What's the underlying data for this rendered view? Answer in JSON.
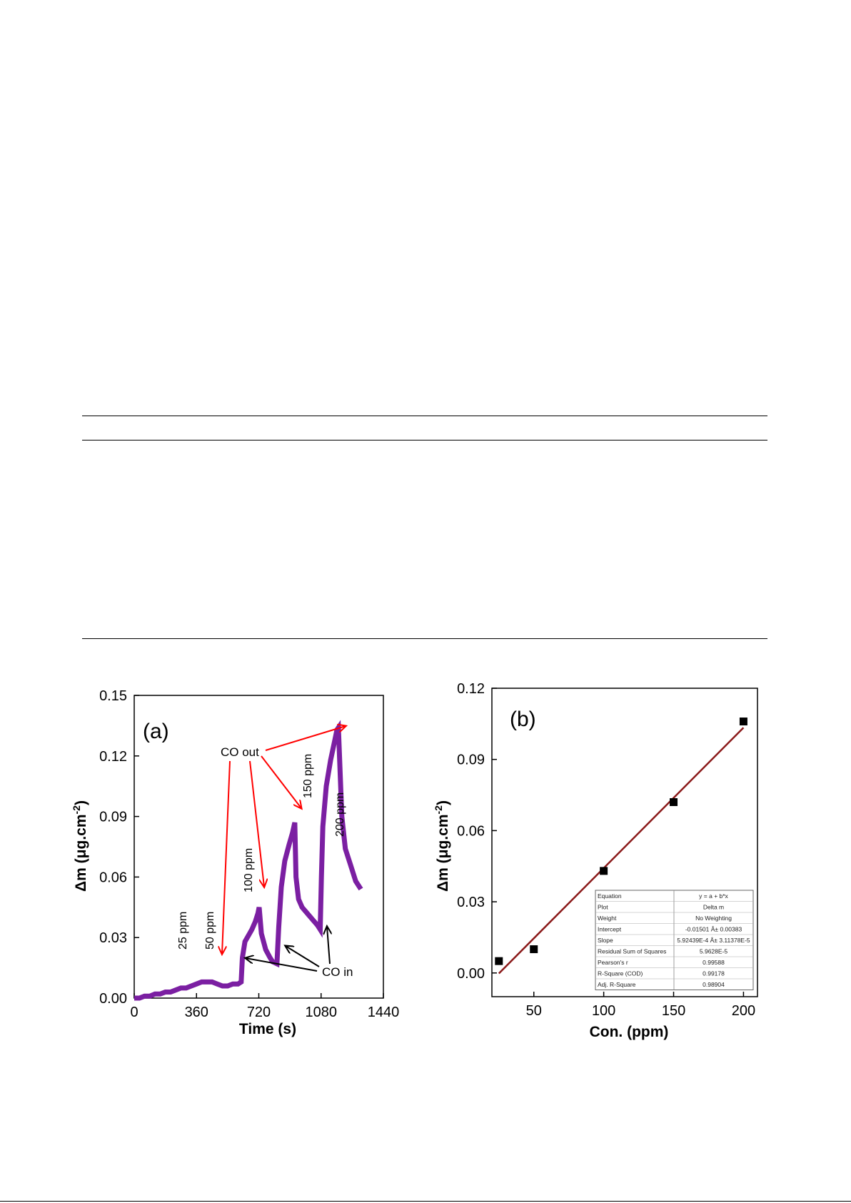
{
  "charts": [
    {
      "id": "a",
      "type": "line",
      "panel_label": "(a)",
      "xlabel": "Time (s)",
      "ylabel_main": "Δm (μg.cm",
      "ylabel_sup": "-2",
      "ylabel_tail": ")",
      "xlim": [
        0,
        1440
      ],
      "ylim": [
        0,
        0.15
      ],
      "xticks": [
        0,
        360,
        720,
        1080,
        1440
      ],
      "yticks": [
        "0.00",
        "0.03",
        "0.06",
        "0.09",
        "0.12",
        "0.15"
      ],
      "line_color": "#7b1fa2",
      "x": [
        0,
        30,
        60,
        90,
        120,
        150,
        180,
        210,
        240,
        270,
        300,
        330,
        360,
        390,
        420,
        450,
        480,
        510,
        540,
        570,
        600,
        618,
        625,
        640,
        660,
        680,
        700,
        715,
        722,
        735,
        760,
        785,
        800,
        825,
        835,
        850,
        870,
        895,
        915,
        928,
        935,
        950,
        970,
        1000,
        1030,
        1060,
        1075,
        1082,
        1090,
        1110,
        1135,
        1160,
        1172,
        1180,
        1200,
        1220,
        1250,
        1280,
        1310
      ],
      "y": [
        0,
        0,
        0.001,
        0.001,
        0.002,
        0.002,
        0.003,
        0.003,
        0.004,
        0.005,
        0.005,
        0.006,
        0.007,
        0.008,
        0.008,
        0.008,
        0.007,
        0.006,
        0.006,
        0.007,
        0.007,
        0.008,
        0.02,
        0.028,
        0.031,
        0.034,
        0.038,
        0.042,
        0.045,
        0.032,
        0.024,
        0.02,
        0.018,
        0.017,
        0.035,
        0.055,
        0.068,
        0.076,
        0.082,
        0.087,
        0.06,
        0.049,
        0.045,
        0.042,
        0.039,
        0.036,
        0.034,
        0.06,
        0.085,
        0.105,
        0.118,
        0.128,
        0.133,
        0.134,
        0.09,
        0.074,
        0.066,
        0.058,
        0.054
      ],
      "annotations": {
        "ppm_25": "25 ppm",
        "ppm_50": "50 ppm",
        "ppm_100": "100 ppm",
        "ppm_150": "150 ppm",
        "ppm_200": "200 ppm",
        "co_out": "CO out",
        "co_in": "CO in"
      },
      "out_arrow_color": "#ff0000",
      "in_arrow_color": "#000000"
    },
    {
      "id": "b",
      "type": "scatter",
      "panel_label": "(b)",
      "xlabel": "Con. (ppm)",
      "ylabel_main": "Δm (μg.cm",
      "ylabel_sup": "-2",
      "ylabel_tail": ")",
      "xlim": [
        20,
        210
      ],
      "ylim": [
        -0.01,
        0.12
      ],
      "xticks": [
        50,
        100,
        150,
        200
      ],
      "yticks": [
        "0.00",
        "0.03",
        "0.06",
        "0.09",
        "0.12"
      ],
      "x": [
        25,
        50,
        100,
        150,
        200
      ],
      "y": [
        0.005,
        0.01,
        0.043,
        0.072,
        0.106
      ],
      "fit": {
        "intercept": -0.01501,
        "slope": 0.000592,
        "color": "#8b1a1a"
      },
      "fit_table": [
        [
          "Equation",
          "y = a + b*x"
        ],
        [
          "Plot",
          "Delta m"
        ],
        [
          "Weight",
          "No Weighting"
        ],
        [
          "Intercept",
          "-0.01501 Â± 0.00383"
        ],
        [
          "Slope",
          "5.92439E-4 Â± 3.11378E-5"
        ],
        [
          "Residual Sum of Squares",
          "5.9628E-5"
        ],
        [
          "Pearson's r",
          "0.99588"
        ],
        [
          "R-Square (COD)",
          "0.99178"
        ],
        [
          "Adj. R-Square",
          "0.98904"
        ]
      ]
    }
  ]
}
